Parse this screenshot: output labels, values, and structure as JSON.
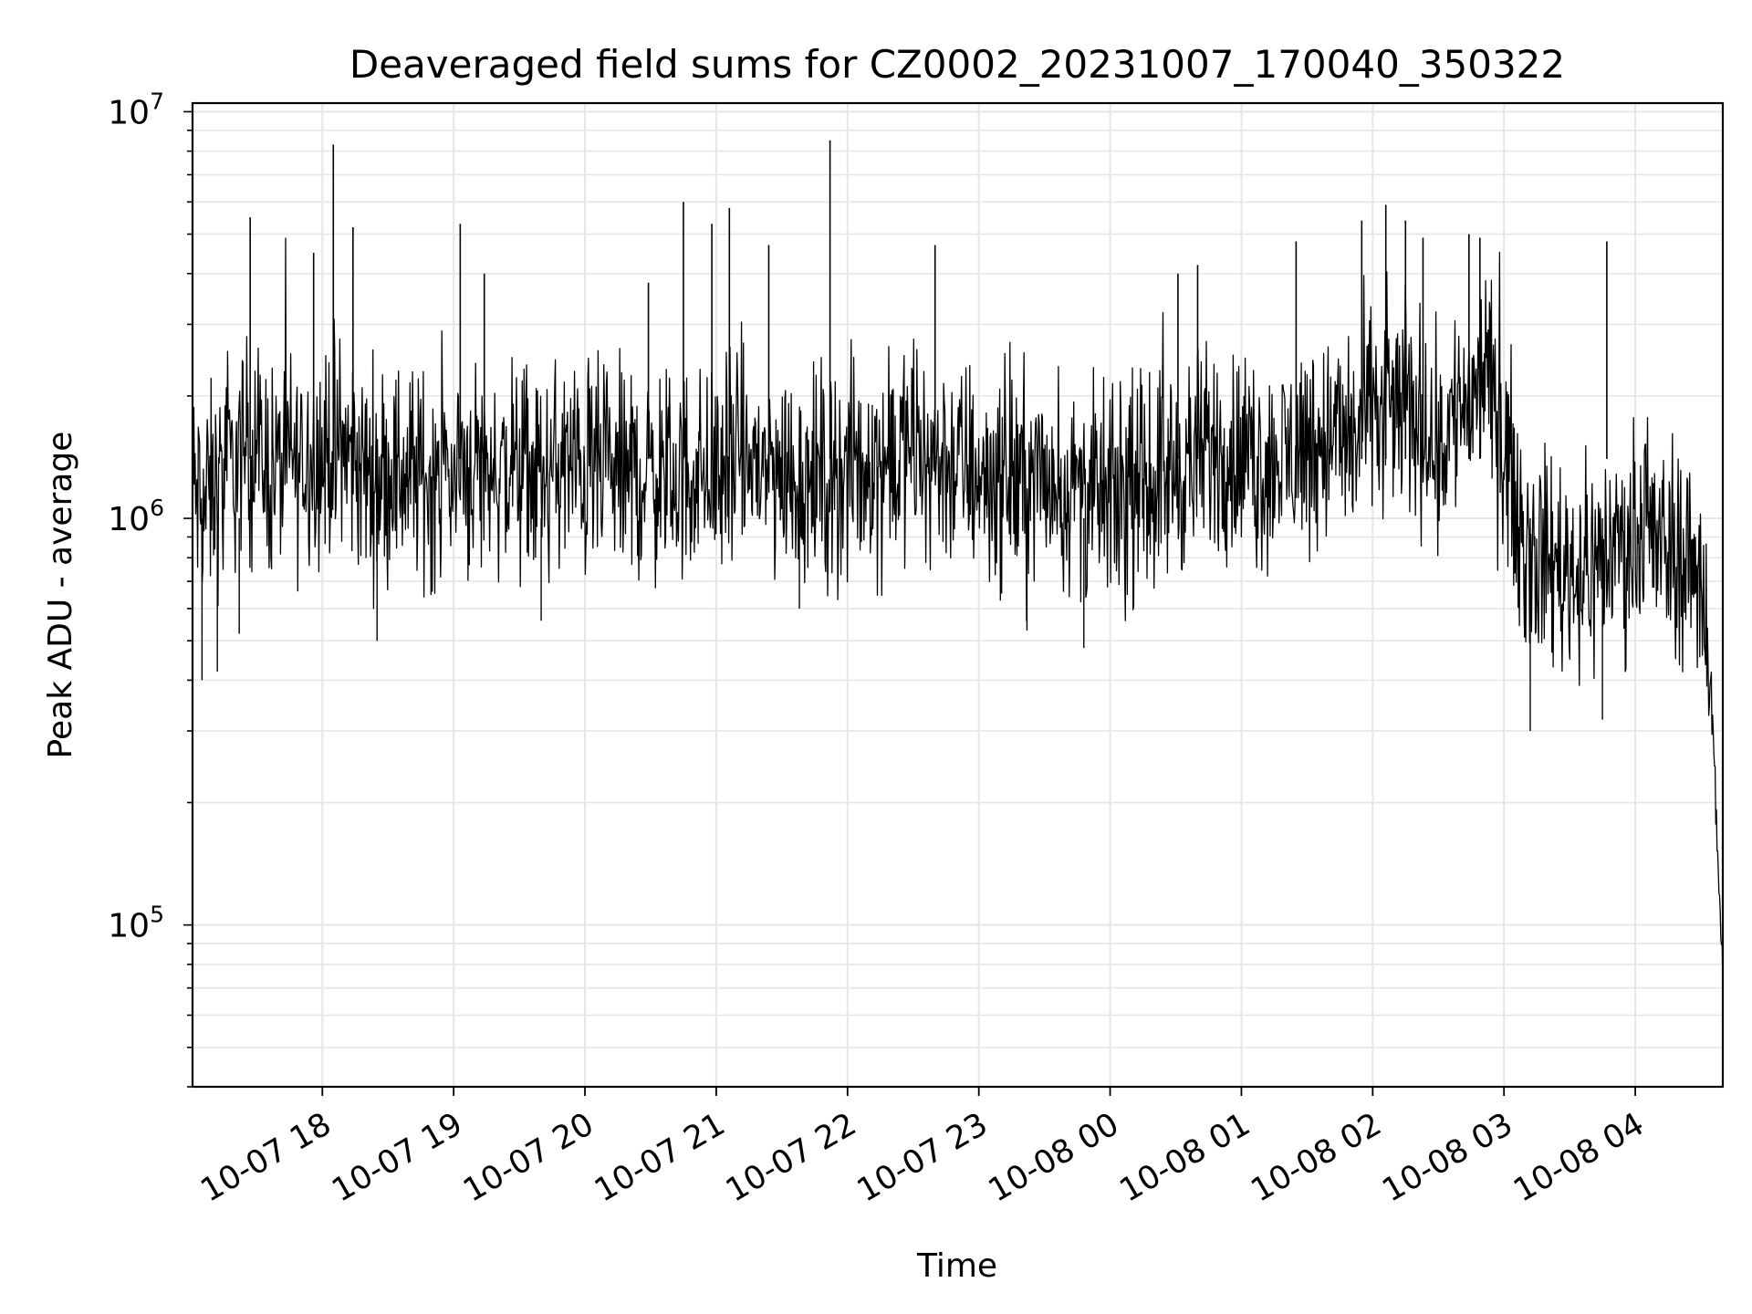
{
  "chart_data": {
    "type": "line",
    "title": "Deaveraged field sums for CZ0002_20231007_170040_350322",
    "xlabel": "Time",
    "ylabel": "Peak ADU - average",
    "yscale": "log",
    "ylim": [
      40000,
      10500000
    ],
    "xlim": [
      "2023-10-07T17:00:40",
      "2023-10-08T04:40:00"
    ],
    "grid": true,
    "legend": "none",
    "line_color": "#000000",
    "grid_color": "#e6e6e6",
    "x_ticks": [
      {
        "value": "2023-10-07T18:00:00",
        "label": "10-07 18"
      },
      {
        "value": "2023-10-07T19:00:00",
        "label": "10-07 19"
      },
      {
        "value": "2023-10-07T20:00:00",
        "label": "10-07 20"
      },
      {
        "value": "2023-10-07T21:00:00",
        "label": "10-07 21"
      },
      {
        "value": "2023-10-07T22:00:00",
        "label": "10-07 22"
      },
      {
        "value": "2023-10-07T23:00:00",
        "label": "10-07 23"
      },
      {
        "value": "2023-10-08T00:00:00",
        "label": "10-08 00"
      },
      {
        "value": "2023-10-08T01:00:00",
        "label": "10-08 01"
      },
      {
        "value": "2023-10-08T02:00:00",
        "label": "10-08 02"
      },
      {
        "value": "2023-10-08T03:00:00",
        "label": "10-08 03"
      },
      {
        "value": "2023-10-08T04:00:00",
        "label": "10-08 04"
      }
    ],
    "y_ticks": [
      {
        "value": 100000,
        "base": "10",
        "exp": "5"
      },
      {
        "value": 1000000,
        "base": "10",
        "exp": "6"
      },
      {
        "value": 10000000,
        "base": "10",
        "exp": "7"
      }
    ],
    "series": [
      {
        "x": [
          "2023-10-07T17:00:40",
          "2023-10-07T17:05:00",
          "2023-10-07T17:10:00",
          "2023-10-07T17:15:00",
          "2023-10-07T17:20:00",
          "2023-10-07T17:25:00",
          "2023-10-07T17:30:00",
          "2023-10-07T17:35:00",
          "2023-10-07T17:40:00",
          "2023-10-07T17:45:00",
          "2023-10-07T17:50:00",
          "2023-10-07T17:55:00",
          "2023-10-07T18:00:00",
          "2023-10-07T18:05:00",
          "2023-10-07T18:10:00",
          "2023-10-07T18:15:00",
          "2023-10-07T18:20:00",
          "2023-10-07T18:30:00",
          "2023-10-07T18:40:00",
          "2023-10-07T18:50:00",
          "2023-10-07T19:00:00",
          "2023-10-07T19:10:00",
          "2023-10-07T19:20:00",
          "2023-10-07T19:30:00",
          "2023-10-07T19:40:00",
          "2023-10-07T19:50:00",
          "2023-10-07T20:00:00",
          "2023-10-07T20:10:00",
          "2023-10-07T20:20:00",
          "2023-10-07T20:30:00",
          "2023-10-07T20:40:00",
          "2023-10-07T20:50:00",
          "2023-10-07T21:00:00",
          "2023-10-07T21:10:00",
          "2023-10-07T21:20:00",
          "2023-10-07T21:30:00",
          "2023-10-07T21:40:00",
          "2023-10-07T21:50:00",
          "2023-10-07T22:00:00",
          "2023-10-07T22:10:00",
          "2023-10-07T22:20:00",
          "2023-10-07T22:30:00",
          "2023-10-07T22:40:00",
          "2023-10-07T22:50:00",
          "2023-10-07T23:00:00",
          "2023-10-07T23:10:00",
          "2023-10-07T23:20:00",
          "2023-10-07T23:30:00",
          "2023-10-07T23:40:00",
          "2023-10-07T23:50:00",
          "2023-10-08T00:00:00",
          "2023-10-08T00:10:00",
          "2023-10-08T00:20:00",
          "2023-10-08T00:30:00",
          "2023-10-08T00:40:00",
          "2023-10-08T00:50:00",
          "2023-10-08T01:00:00",
          "2023-10-08T01:10:00",
          "2023-10-08T01:20:00",
          "2023-10-08T01:30:00",
          "2023-10-08T01:40:00",
          "2023-10-08T01:50:00",
          "2023-10-08T02:00:00",
          "2023-10-08T02:10:00",
          "2023-10-08T02:20:00",
          "2023-10-08T02:30:00",
          "2023-10-08T02:40:00",
          "2023-10-08T02:50:00",
          "2023-10-08T03:00:00",
          "2023-10-08T03:05:00",
          "2023-10-08T03:10:00",
          "2023-10-08T03:20:00",
          "2023-10-08T03:30:00",
          "2023-10-08T03:40:00",
          "2023-10-08T03:50:00",
          "2023-10-08T04:00:00",
          "2023-10-08T04:10:00",
          "2023-10-08T04:20:00",
          "2023-10-08T04:30:00",
          "2023-10-08T04:34:00",
          "2023-10-08T04:36:00",
          "2023-10-08T04:38:00",
          "2023-10-08T04:39:00",
          "2023-10-08T04:40:00"
        ],
        "y": [
          1200000,
          1050000,
          1150000,
          1250000,
          1350000,
          1500000,
          1450000,
          1350000,
          1300000,
          1400000,
          1350000,
          1500000,
          1400000,
          1500000,
          1450000,
          1350000,
          1300000,
          1300000,
          1300000,
          1250000,
          1300000,
          1350000,
          1300000,
          1300000,
          1250000,
          1350000,
          1300000,
          1300000,
          1250000,
          1300000,
          1250000,
          1300000,
          1300000,
          1400000,
          1350000,
          1300000,
          1250000,
          1250000,
          1300000,
          1350000,
          1400000,
          1450000,
          1400000,
          1350000,
          1300000,
          1250000,
          1250000,
          1250000,
          1200000,
          1150000,
          1100000,
          1150000,
          1250000,
          1300000,
          1400000,
          1500000,
          1400000,
          1350000,
          1400000,
          1550000,
          1600000,
          1550000,
          1800000,
          1900000,
          1800000,
          1500000,
          1900000,
          2200000,
          1700000,
          1100000,
          850000,
          800000,
          750000,
          750000,
          850000,
          900000,
          850000,
          800000,
          750000,
          450000,
          250000,
          150000,
          90000,
          70000
        ],
        "spikes": [
          {
            "x": "2023-10-07T17:27:00",
            "y": 5500000
          },
          {
            "x": "2023-10-07T17:56:00",
            "y": 4500000
          },
          {
            "x": "2023-10-07T18:05:00",
            "y": 8300000
          },
          {
            "x": "2023-10-07T18:14:00",
            "y": 5200000
          },
          {
            "x": "2023-10-07T19:03:00",
            "y": 5300000
          },
          {
            "x": "2023-10-07T19:14:00",
            "y": 4000000
          },
          {
            "x": "2023-10-07T20:29:00",
            "y": 3800000
          },
          {
            "x": "2023-10-07T20:45:00",
            "y": 6000000
          },
          {
            "x": "2023-10-07T20:58:00",
            "y": 5300000
          },
          {
            "x": "2023-10-07T21:06:00",
            "y": 5800000
          },
          {
            "x": "2023-10-07T21:24:00",
            "y": 4700000
          },
          {
            "x": "2023-10-07T21:52:00",
            "y": 8500000
          },
          {
            "x": "2023-10-07T22:40:00",
            "y": 4700000
          },
          {
            "x": "2023-10-08T00:31:00",
            "y": 4000000
          },
          {
            "x": "2023-10-08T00:40:00",
            "y": 4200000
          },
          {
            "x": "2023-10-08T01:25:00",
            "y": 4800000
          },
          {
            "x": "2023-10-08T01:55:00",
            "y": 5400000
          },
          {
            "x": "2023-10-08T02:06:00",
            "y": 5900000
          },
          {
            "x": "2023-10-08T02:15:00",
            "y": 5400000
          },
          {
            "x": "2023-10-08T02:23:00",
            "y": 4900000
          },
          {
            "x": "2023-10-08T02:44:00",
            "y": 5000000
          },
          {
            "x": "2023-10-08T02:49:00",
            "y": 4900000
          },
          {
            "x": "2023-10-08T03:47:00",
            "y": 4800000
          }
        ],
        "dips": [
          {
            "x": "2023-10-07T17:05:00",
            "y": 400000
          },
          {
            "x": "2023-10-07T17:12:00",
            "y": 420000
          },
          {
            "x": "2023-10-07T17:22:00",
            "y": 520000
          },
          {
            "x": "2023-10-07T18:25:00",
            "y": 500000
          },
          {
            "x": "2023-10-07T19:40:00",
            "y": 560000
          },
          {
            "x": "2023-10-07T21:38:00",
            "y": 600000
          },
          {
            "x": "2023-10-07T23:22:00",
            "y": 530000
          },
          {
            "x": "2023-10-07T23:48:00",
            "y": 480000
          },
          {
            "x": "2023-10-08T03:12:00",
            "y": 300000
          },
          {
            "x": "2023-10-08T03:45:00",
            "y": 320000
          }
        ]
      }
    ]
  }
}
